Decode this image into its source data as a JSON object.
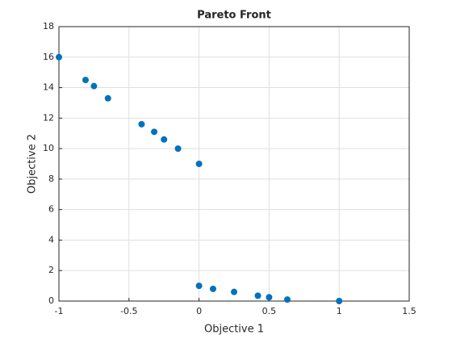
{
  "chart_data": {
    "type": "scatter",
    "title": "Pareto Front",
    "x_label": "Objective 1",
    "y_label": "Objective 2",
    "x": [
      -1,
      -0.81,
      -0.75,
      -0.65,
      -0.41,
      -0.32,
      -0.25,
      -0.15,
      0,
      0,
      0.1,
      0.25,
      0.42,
      0.5,
      0.63,
      1
    ],
    "y": [
      16,
      14.5,
      14.1,
      13.3,
      11.6,
      11.1,
      10.6,
      10,
      9,
      1,
      0.8,
      0.6,
      0.35,
      0.25,
      0.1,
      0
    ],
    "color": "#0072bd",
    "xlim": [
      -1,
      1.5
    ],
    "xticks": [
      -1,
      -0.5,
      0,
      0.5,
      1,
      1.5
    ],
    "ylim": [
      0,
      18
    ],
    "yticks": [
      0,
      2,
      4,
      6,
      8,
      10,
      12,
      14,
      16,
      18
    ],
    "grid": true
  }
}
